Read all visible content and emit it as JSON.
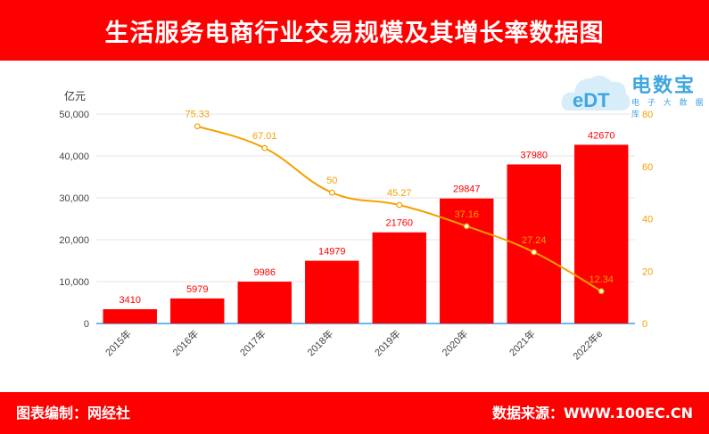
{
  "header": {
    "title": "生活服务电商行业交易规模及其增长率数据图"
  },
  "footer": {
    "left": "图表编制：网经社",
    "right": "数据来源：WWW.100EC.CN"
  },
  "logo": {
    "text": "电数宝",
    "abbr": "eDT",
    "sub": "电 子 大 数 据 库",
    "color": "#3fa6e0"
  },
  "colors": {
    "bar": "#ff0000",
    "line": "#f5a000",
    "accent": "#ff0000"
  },
  "chart_data": {
    "type": "bar",
    "ylabel": "亿元",
    "categories": [
      "2015年",
      "2016年",
      "2017年",
      "2018年",
      "2019年",
      "2020年",
      "2021年",
      "2022年e"
    ],
    "series": [
      {
        "type": "bar",
        "axis": "left",
        "values": [
          3410,
          5979,
          9986,
          14979,
          21760,
          29847,
          37980,
          42670
        ]
      },
      {
        "type": "line",
        "axis": "right",
        "values": [
          null,
          75.33,
          67.01,
          50,
          45.27,
          37.16,
          27.24,
          12.34
        ]
      }
    ],
    "y_left": {
      "min": 0,
      "max": 50000,
      "ticks": [
        "0",
        "10,000",
        "20,000",
        "30,000",
        "40,000",
        "50,000"
      ]
    },
    "y_right": {
      "min": 0,
      "max": 80,
      "ticks": [
        "0",
        "20",
        "40",
        "60",
        "80"
      ]
    },
    "grid": true
  }
}
